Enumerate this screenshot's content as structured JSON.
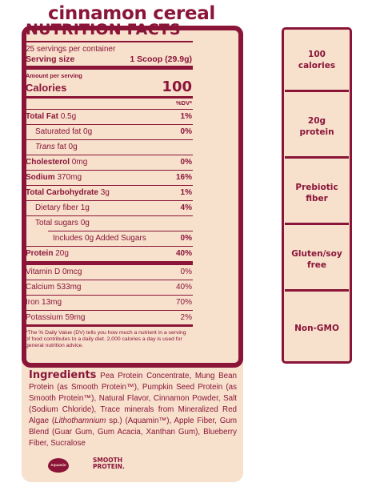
{
  "title": "cinnamon cereal",
  "nutrition": {
    "heading": "NUTRITION FACTS",
    "servings": "25 servings per container",
    "serving_size_label": "Serving size",
    "serving_size_value": "1 Scoop (29.9g)",
    "amount_per_serving": "Amount per serving",
    "calories_label": "Calories",
    "calories_value": "100",
    "dv_header": "%DV*",
    "rows": [
      {
        "label": "Total Fat",
        "amount": "0.5g",
        "dv": "1%"
      },
      {
        "label": "Saturated fat",
        "amount": "0g",
        "dv": "0%"
      },
      {
        "label": "Trans",
        "amount": "fat 0g",
        "dv": ""
      },
      {
        "label": "Cholesterol",
        "amount": "0mg",
        "dv": "0%"
      },
      {
        "label": "Sodium",
        "amount": "370mg",
        "dv": "16%"
      },
      {
        "label": "Total Carbohydrate",
        "amount": "3g",
        "dv": "1%"
      },
      {
        "label": "Dietary fiber",
        "amount": "1g",
        "dv": "4%"
      },
      {
        "label": "Total sugars",
        "amount": "0g",
        "dv": ""
      },
      {
        "label": "Includes 0g Added Sugars",
        "amount": "",
        "dv": "0%"
      },
      {
        "label": "Protein",
        "amount": "20g",
        "dv": "40%"
      },
      {
        "label": "Vitamin D",
        "amount": "0mcg",
        "dv": "0%"
      },
      {
        "label": "Calcium",
        "amount": "533mg",
        "dv": "40%"
      },
      {
        "label": "Iron",
        "amount": "13mg",
        "dv": "70%"
      },
      {
        "label": "Potassium",
        "amount": "59mg",
        "dv": "2%"
      }
    ],
    "footnote": "*The % Daily Value (DV) tells you how much a nutrient in a serving of food contributes to a daily diet. 2,000 calories a day is used for general nutrition advice."
  },
  "ingredients": {
    "title": "Ingredients",
    "text_a": "Pea Protein Concentrate, Mung Bean Protein (as Smooth Protein™), Pumpkin Seed Protein (as Smooth Protein™), Natural Flavor, Cinnamon Powder, Salt (Sodium Chloride), Trace minerals from Mineralized Red Algae (",
    "text_italic": "Lithothamnium",
    "text_b": " sp.) (Aquamin™), Apple Fiber, Gum Blend (Guar Gum, Gum Acacia, Xanthan Gum), Blueberry Fiber, Sucralose"
  },
  "logos": {
    "aquamin": "Aquamin",
    "smooth_line1": "SMOOTH",
    "smooth_line2": "PROTEIN."
  },
  "highlights": [
    "100 calories",
    "20g protein",
    "Prebiotic fiber",
    "Gluten/soy free",
    "Non-GMO"
  ],
  "colors": {
    "accent": "#8a1538",
    "background": "#f7e0cc"
  }
}
